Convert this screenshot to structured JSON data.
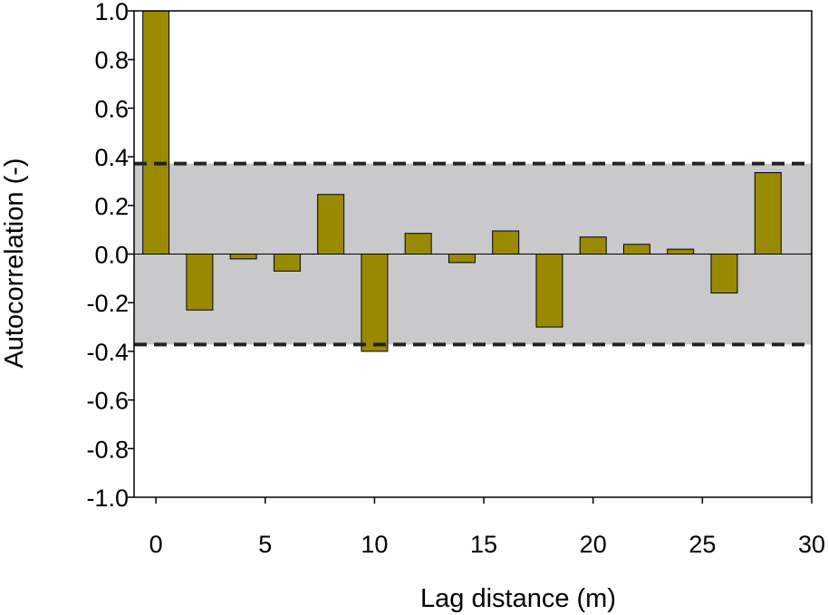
{
  "chart_data": {
    "type": "bar",
    "xlabel": "Lag distance (m)",
    "ylabel": "Autocorrelation (-)",
    "xlim": [
      -1,
      30
    ],
    "ylim": [
      -1.0,
      1.0
    ],
    "x_ticks": [
      0,
      5,
      10,
      15,
      20,
      25,
      30
    ],
    "y_ticks": [
      "1.0",
      "0.8",
      "0.6",
      "0.4",
      "0.2",
      "0.0",
      "-0.2",
      "-0.4",
      "-0.6",
      "-0.8",
      "-1.0"
    ],
    "x": [
      0,
      2,
      4,
      6,
      8,
      10,
      12,
      14,
      16,
      18,
      20,
      22,
      24,
      26,
      28
    ],
    "values": [
      1.0,
      -0.23,
      -0.02,
      -0.07,
      0.245,
      -0.4,
      0.085,
      -0.035,
      0.095,
      -0.3,
      0.07,
      0.04,
      0.02,
      -0.16,
      0.335
    ],
    "confidence_band": [
      -0.372,
      0.372
    ],
    "grid": false,
    "colors": {
      "bar": "#9a8a00",
      "band": "#c9c9cb",
      "dashed": "#222222"
    }
  }
}
